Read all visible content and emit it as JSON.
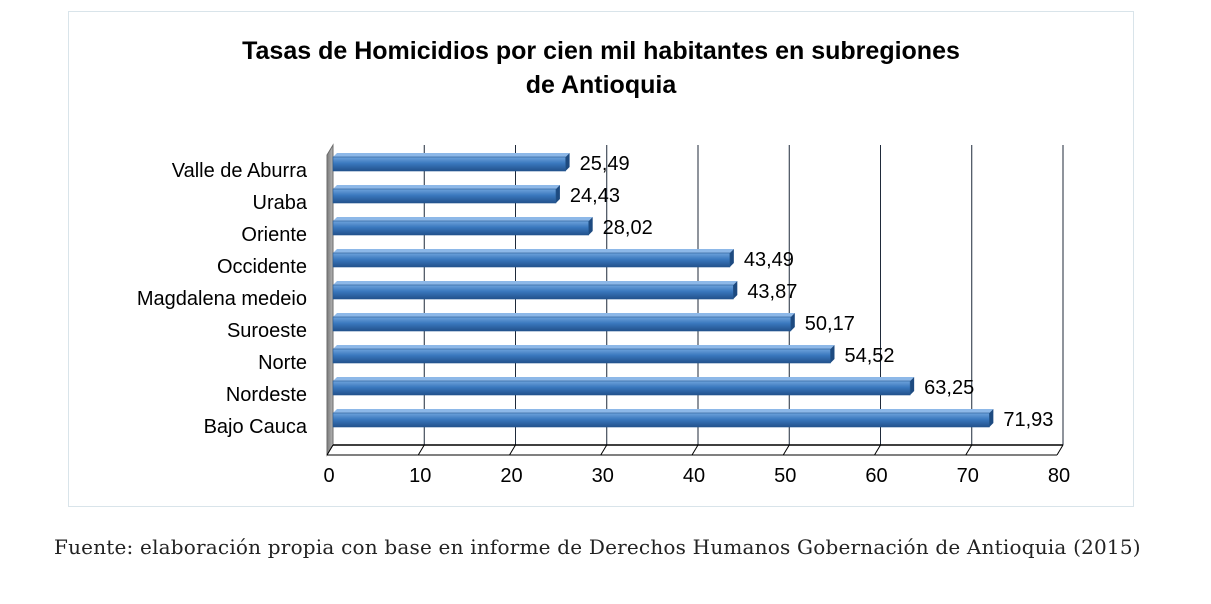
{
  "chart_data": {
    "type": "bar",
    "orientation": "horizontal",
    "title": "Tasas de Homicidios por cien mil habitantes en subregiones de Antioquia",
    "title_lines": [
      "Tasas de Homicidios por cien mil habitantes en subregiones",
      "de Antioquia"
    ],
    "categories": [
      "Valle de Aburra",
      "Uraba",
      "Oriente",
      "Occidente",
      "Magdalena medeio",
      "Suroeste",
      "Norte",
      "Nordeste",
      "Bajo Cauca"
    ],
    "values": [
      25.49,
      24.43,
      28.02,
      43.49,
      43.87,
      50.17,
      54.52,
      63.25,
      71.93
    ],
    "value_labels": [
      "25,49",
      "24,43",
      "28,02",
      "43,49",
      "43,87",
      "50,17",
      "54,52",
      "63,25",
      "71,93"
    ],
    "xlim": [
      0,
      80
    ],
    "xticks": [
      "0",
      "10",
      "20",
      "30",
      "40",
      "50",
      "60",
      "70",
      "80"
    ],
    "grid": "vertical",
    "bar_color": "#3a78be",
    "legend": "none"
  },
  "caption": "Fuente: elaboración propia con base en informe de Derechos Humanos Gobernación de Antioquia (2015)"
}
